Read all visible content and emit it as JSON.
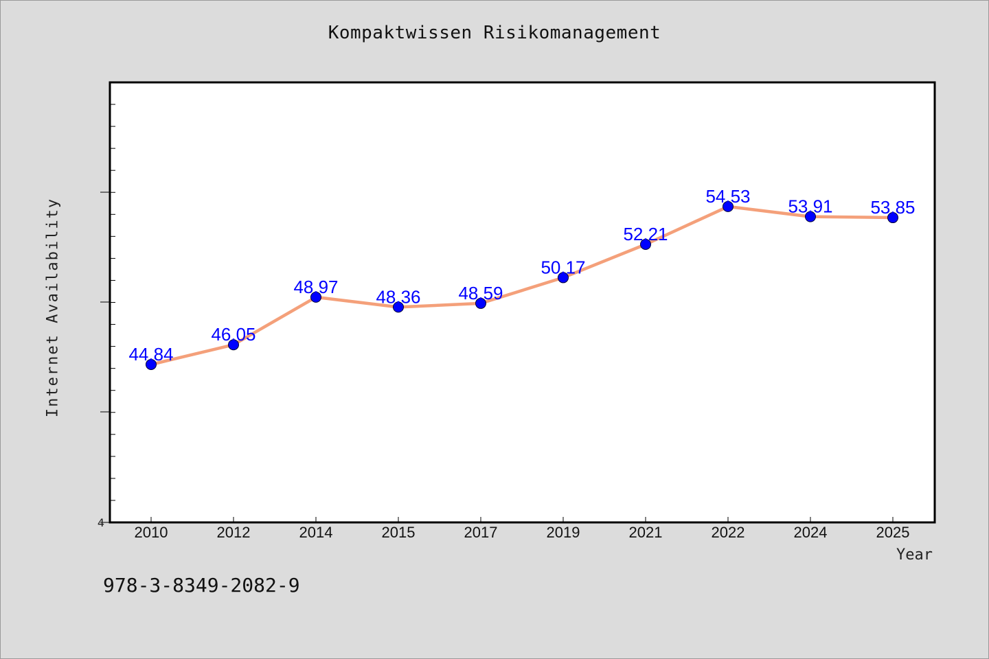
{
  "chart_data": {
    "type": "line",
    "title": "Kompaktwissen Risikomanagement",
    "xlabel": "Year",
    "ylabel": "Internet Availability",
    "ylim": [
      35.15,
      62.15
    ],
    "y_tick_label": "4",
    "categories": [
      "2010",
      "2012",
      "2014",
      "2015",
      "2017",
      "2019",
      "2021",
      "2022",
      "2024",
      "2025"
    ],
    "series": [
      {
        "values": [
          44.84,
          46.05,
          48.97,
          48.36,
          48.59,
          50.17,
          52.21,
          54.53,
          53.91,
          53.85
        ],
        "data_labels": [
          "44.84",
          "46.05",
          "48.97",
          "48.36",
          "48.59",
          "50.17",
          "52.21",
          "54.53",
          "53.91",
          "53.85"
        ],
        "line_color": "#f4a07a",
        "marker_color": "#0000ff",
        "label_color": "#0000ff"
      }
    ],
    "grid": false
  },
  "footer": {
    "isbn": "978-3-8349-2082-9"
  }
}
